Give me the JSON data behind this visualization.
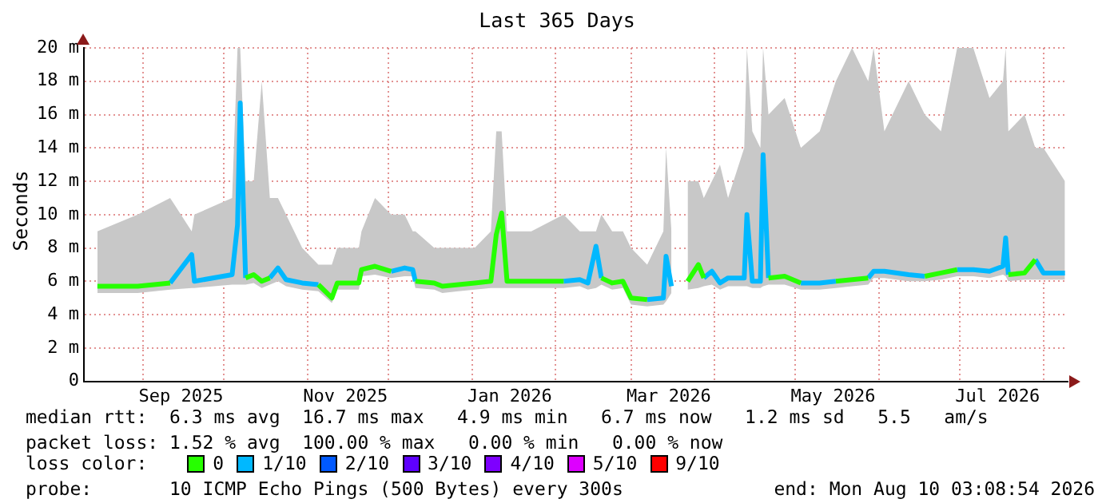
{
  "chart_data": {
    "type": "line",
    "title": "Last 365 Days",
    "ylabel": "Seconds",
    "x": [
      "2025-08-15",
      "2025-08-30",
      "2025-09-11",
      "2025-09-19",
      "2025-09-20",
      "2025-10-04",
      "2025-10-06",
      "2025-10-07",
      "2025-10-09",
      "2025-10-12",
      "2025-10-15",
      "2025-10-18",
      "2025-10-21",
      "2025-10-24",
      "2025-10-30",
      "2025-11-05",
      "2025-11-10",
      "2025-11-12",
      "2025-11-20",
      "2025-11-21",
      "2025-11-26",
      "2025-12-02",
      "2025-12-07",
      "2025-12-10",
      "2025-12-11",
      "2025-12-18",
      "2025-12-21",
      "2025-12-27",
      "2026-01-02",
      "2026-01-08",
      "2026-01-10",
      "2026-01-12",
      "2026-01-14",
      "2026-01-23",
      "2026-02-04",
      "2026-02-10",
      "2026-02-13",
      "2026-02-16",
      "2026-02-18",
      "2026-02-22",
      "2026-02-26",
      "2026-03-01",
      "2026-03-07",
      "2026-03-13",
      "2026-03-14",
      "2026-03-16",
      "2026-03-18",
      "2026-03-22",
      "2026-03-26",
      "2026-03-28",
      "2026-03-31",
      "2026-04-03",
      "2026-04-06",
      "2026-04-12",
      "2026-04-13",
      "2026-04-15",
      "2026-04-18",
      "2026-04-19",
      "2026-04-21",
      "2026-04-27",
      "2026-05-03",
      "2026-05-10",
      "2026-05-16",
      "2026-05-22",
      "2026-05-28",
      "2026-05-30",
      "2026-06-03",
      "2026-06-12",
      "2026-06-18",
      "2026-06-24",
      "2026-06-30",
      "2026-07-06",
      "2026-07-12",
      "2026-07-17",
      "2026-07-18",
      "2026-07-19",
      "2026-07-25",
      "2026-07-29",
      "2026-08-01",
      "2026-08-09"
    ],
    "series": [
      {
        "name": "0",
        "color": "#26ff00",
        "values": [
          5.7,
          5.7,
          5.9,
          null,
          null,
          null,
          null,
          null,
          6.2,
          6.4,
          6.0,
          6.2,
          null,
          null,
          null,
          5.8,
          5.0,
          5.9,
          5.9,
          6.7,
          6.9,
          6.6,
          null,
          null,
          6.0,
          5.9,
          5.7,
          5.8,
          5.9,
          6.0,
          8.8,
          10.1,
          6.0,
          6.0,
          6.0,
          null,
          null,
          null,
          6.2,
          5.9,
          6.0,
          5.0,
          4.9,
          null,
          null,
          null,
          null,
          6.0,
          7.0,
          6.2,
          null,
          null,
          null,
          null,
          null,
          null,
          null,
          null,
          6.2,
          6.3,
          5.9,
          null,
          6.0,
          6.1,
          6.2,
          null,
          null,
          null,
          6.3,
          6.5,
          6.7,
          null,
          null,
          null,
          null,
          6.4,
          6.5,
          7.3,
          null,
          null
        ]
      },
      {
        "name": "1/10",
        "color": "#00b8ff",
        "values": [
          null,
          null,
          5.9,
          7.6,
          6.0,
          6.4,
          9.4,
          16.7,
          6.2,
          null,
          null,
          6.2,
          6.8,
          6.1,
          5.9,
          5.8,
          null,
          null,
          null,
          null,
          null,
          6.6,
          6.8,
          6.7,
          6.0,
          null,
          null,
          null,
          null,
          null,
          null,
          null,
          null,
          null,
          6.0,
          6.1,
          5.9,
          8.1,
          6.2,
          null,
          null,
          null,
          4.9,
          5.0,
          7.5,
          5.7,
          null,
          null,
          null,
          6.2,
          6.6,
          5.9,
          6.2,
          6.2,
          10.0,
          6.0,
          6.0,
          13.6,
          6.2,
          null,
          5.9,
          5.9,
          6.0,
          null,
          6.2,
          6.6,
          6.6,
          6.4,
          6.3,
          null,
          6.7,
          6.7,
          6.6,
          6.9,
          8.6,
          6.4,
          null,
          7.3,
          6.5,
          6.5
        ],
        "lower": [
          5.3,
          5.3,
          5.5,
          5.6,
          5.6,
          5.8,
          5.8,
          5.8,
          5.8,
          5.9,
          5.6,
          5.8,
          6.0,
          5.7,
          5.5,
          5.4,
          4.7,
          5.5,
          5.5,
          6.3,
          6.4,
          6.2,
          6.3,
          6.3,
          5.6,
          5.5,
          5.3,
          5.4,
          5.5,
          5.6,
          5.6,
          5.6,
          5.6,
          5.6,
          5.6,
          5.7,
          5.5,
          5.6,
          5.8,
          5.5,
          5.6,
          4.6,
          4.5,
          4.6,
          4.8,
          5.3,
          null,
          5.5,
          5.6,
          5.7,
          5.8,
          5.5,
          5.7,
          5.7,
          5.7,
          5.6,
          5.6,
          5.7,
          5.8,
          5.8,
          5.5,
          5.5,
          5.6,
          5.7,
          5.8,
          6.2,
          6.2,
          6.0,
          6.0,
          6.1,
          6.3,
          6.3,
          6.2,
          6.4,
          6.3,
          6.0,
          6.1,
          6.1,
          6.1,
          6.1
        ],
        "upper": [
          9,
          10,
          11,
          9,
          10,
          11,
          20,
          20,
          12,
          12,
          18,
          11,
          11,
          10,
          8,
          7,
          7,
          8,
          8,
          9,
          11,
          10,
          10,
          9,
          9,
          8,
          8,
          8,
          8,
          9,
          15,
          15,
          9,
          9,
          10,
          9,
          9,
          9,
          10,
          9,
          9,
          8,
          7,
          9,
          14,
          9,
          null,
          12,
          12,
          11,
          12,
          13,
          11,
          14,
          20,
          15,
          14,
          20,
          16,
          17,
          14,
          15,
          18,
          20,
          18,
          20,
          15,
          18,
          16,
          15,
          20,
          20,
          17,
          18,
          20,
          15,
          16,
          14,
          14,
          12
        ]
      },
      {
        "name": "2/10",
        "color": "#0059ff",
        "values": [
          null,
          null,
          null,
          null,
          null,
          null,
          null,
          null,
          null,
          null,
          null,
          null,
          null,
          null,
          null,
          null,
          null,
          null,
          null,
          null,
          null,
          null,
          null,
          null,
          null,
          null,
          null,
          null,
          null,
          null,
          null,
          null,
          null,
          null,
          null,
          null,
          null,
          null,
          null,
          null,
          null,
          null,
          null,
          null,
          null,
          null,
          null,
          null,
          null,
          null,
          null,
          null,
          null,
          null,
          null,
          null,
          null,
          null,
          null,
          null,
          null,
          null,
          null,
          null,
          null,
          null,
          null,
          null,
          null,
          null,
          null,
          null,
          null,
          null,
          null,
          null,
          null,
          null,
          null,
          null
        ]
      },
      {
        "name": "3/10",
        "color": "#5e00ff",
        "values": [
          null,
          null,
          null,
          null,
          null,
          null,
          null,
          null,
          null,
          null,
          null,
          null,
          null,
          null,
          null,
          null,
          null,
          null,
          null,
          null,
          null,
          null,
          null,
          null,
          null,
          null,
          null,
          null,
          null,
          null,
          null,
          null,
          null,
          null,
          null,
          null,
          null,
          null,
          null,
          null,
          null,
          null,
          null,
          null,
          null,
          null,
          null,
          null,
          null,
          null,
          null,
          null,
          null,
          null,
          null,
          null,
          null,
          null,
          null,
          null,
          null,
          null,
          null,
          null,
          null,
          null,
          null,
          null,
          null,
          null,
          null,
          null,
          null,
          null,
          null,
          null,
          null,
          null,
          null,
          null
        ]
      },
      {
        "name": "4/10",
        "color": "#7e00ff",
        "values": [
          null,
          null,
          null,
          null,
          null,
          null,
          null,
          null,
          null,
          null,
          null,
          null,
          null,
          null,
          null,
          null,
          null,
          null,
          null,
          null,
          null,
          null,
          null,
          null,
          null,
          null,
          null,
          null,
          null,
          null,
          null,
          null,
          null,
          null,
          null,
          null,
          null,
          null,
          null,
          null,
          null,
          null,
          null,
          null,
          null,
          null,
          null,
          null,
          null,
          null,
          null,
          null,
          null,
          null,
          null,
          null,
          null,
          null,
          null,
          null,
          null,
          null,
          null,
          null,
          null,
          null,
          null,
          null,
          null,
          null,
          null,
          null,
          null,
          null,
          null,
          null,
          null,
          null,
          null,
          null
        ]
      },
      {
        "name": "5/10",
        "color": "#dd00ff",
        "values": [
          null,
          null,
          null,
          null,
          null,
          null,
          null,
          null,
          null,
          null,
          null,
          null,
          null,
          null,
          null,
          null,
          null,
          null,
          null,
          null,
          null,
          null,
          null,
          null,
          null,
          null,
          null,
          null,
          null,
          null,
          null,
          null,
          null,
          null,
          null,
          null,
          null,
          null,
          null,
          null,
          null,
          null,
          null,
          null,
          null,
          null,
          null,
          null,
          null,
          null,
          null,
          null,
          null,
          null,
          null,
          null,
          null,
          null,
          null,
          null,
          null,
          null,
          null,
          null,
          null,
          null,
          null,
          null,
          null,
          null,
          null,
          null,
          null,
          null,
          null,
          null,
          null,
          null,
          null,
          null
        ]
      },
      {
        "name": "9/10",
        "color": "#ff0000",
        "values": [
          null,
          null,
          null,
          null,
          null,
          null,
          null,
          null,
          null,
          null,
          null,
          null,
          null,
          null,
          null,
          null,
          null,
          null,
          null,
          null,
          null,
          null,
          null,
          null,
          null,
          null,
          null,
          null,
          null,
          null,
          null,
          null,
          null,
          null,
          null,
          null,
          null,
          null,
          null,
          null,
          null,
          null,
          null,
          null,
          null,
          null,
          null,
          null,
          null,
          null,
          null,
          null,
          null,
          null,
          null,
          null,
          null,
          null,
          null,
          null,
          null,
          null,
          null,
          null,
          null,
          null,
          null,
          null,
          null,
          null,
          null,
          null,
          null,
          null,
          null,
          null,
          null,
          null,
          null,
          null
        ]
      }
    ],
    "legend_title": "loss color:",
    "legend": "bottom",
    "xlim": [
      "2025-08-10",
      "2026-08-10"
    ],
    "xticks": [
      {
        "value": "2025-09-01",
        "label": null
      },
      {
        "value": "2025-09-15",
        "label": "Sep 2025"
      },
      {
        "value": "2025-10-01",
        "label": null
      },
      {
        "value": "2025-11-01",
        "label": null
      },
      {
        "value": "2025-11-15",
        "label": "Nov 2025"
      },
      {
        "value": "2025-12-01",
        "label": null
      },
      {
        "value": "2026-01-01",
        "label": null
      },
      {
        "value": "2026-01-15",
        "label": "Jan 2026"
      },
      {
        "value": "2026-02-01",
        "label": null
      },
      {
        "value": "2026-03-01",
        "label": null
      },
      {
        "value": "2026-03-15",
        "label": "Mar 2026"
      },
      {
        "value": "2026-04-01",
        "label": null
      },
      {
        "value": "2026-05-01",
        "label": null
      },
      {
        "value": "2026-05-15",
        "label": "May 2026"
      },
      {
        "value": "2026-06-01",
        "label": null
      },
      {
        "value": "2026-07-01",
        "label": null
      },
      {
        "value": "2026-07-15",
        "label": "Jul 2026"
      },
      {
        "value": "2026-08-01",
        "label": null
      }
    ],
    "ylim": [
      0,
      20
    ],
    "yticks": [
      0,
      {
        "value": 2,
        "label": "2 m"
      },
      {
        "value": 4,
        "label": "4 m"
      },
      {
        "value": 6,
        "label": "6 m"
      },
      {
        "value": 8,
        "label": "8 m"
      },
      {
        "value": 10,
        "label": "10 m"
      },
      {
        "value": 12,
        "label": "12 m"
      },
      {
        "value": 14,
        "label": "14 m"
      },
      {
        "value": 16,
        "label": "16 m"
      },
      {
        "value": 18,
        "label": "18 m"
      },
      {
        "value": 20,
        "label": "20 m"
      }
    ],
    "grid": true,
    "annotations": [
      "median rtt:  6.3 ms avg  16.7 ms max   4.9 ms min   6.7 ms now   1.2 ms sd   5.5   am/s",
      "packet loss: 1.52 % avg  100.00 % max   0.00 % min   0.00 % now",
      "probe:       10 ICMP Echo Pings (500 Bytes) every 300s",
      "end: Mon Aug 10 03:08:54 2026"
    ]
  }
}
